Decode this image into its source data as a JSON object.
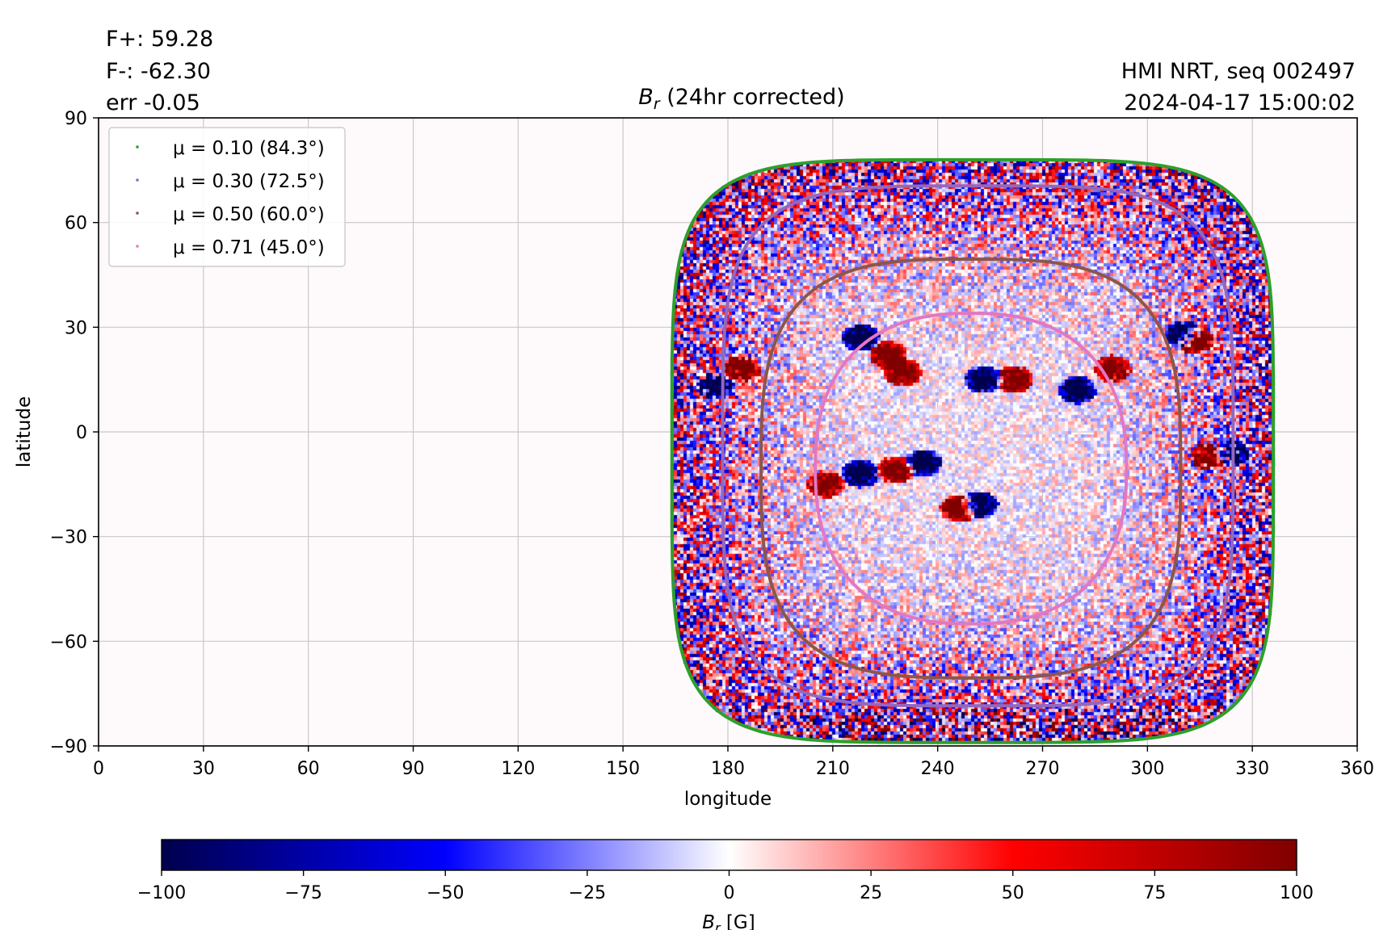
{
  "header": {
    "stats": [
      "F+: 59.28",
      "F-: -62.30",
      "err -0.05"
    ],
    "source": "HMI NRT, seq 002497",
    "timestamp": "2024-04-17 15:00:02"
  },
  "chart_data": {
    "type": "heatmap",
    "title": "B_r (24hr corrected)",
    "title_parts": {
      "symbol": "B",
      "subscript": "r",
      "rest": " (24hr corrected)"
    },
    "xlabel": "longitude",
    "ylabel": "latitude",
    "xlim": [
      0,
      360
    ],
    "ylim": [
      -90,
      90
    ],
    "xticks": [
      0,
      30,
      60,
      90,
      120,
      150,
      180,
      210,
      240,
      270,
      300,
      330,
      360
    ],
    "yticks": [
      90,
      60,
      30,
      0,
      -30,
      -60,
      -90
    ],
    "ytick_labels": [
      "90",
      "60",
      "30",
      "0",
      "−30",
      "−60",
      "−90"
    ],
    "grid": true,
    "map_extent": {
      "lon_min": 164,
      "lon_max": 336,
      "lat_min": -89,
      "lat_max": 78,
      "disk_center_lon": 250,
      "disk_center_lat": -10
    },
    "legend_position": "top-left",
    "contours": [
      {
        "label": "μ = 0.10 (84.3°)",
        "mu": 0.1,
        "angle_deg": 84.3,
        "color": "#2ca02c"
      },
      {
        "label": "μ = 0.30 (72.5°)",
        "mu": 0.3,
        "angle_deg": 72.5,
        "color": "#9467bd"
      },
      {
        "label": "μ = 0.50 (60.0°)",
        "mu": 0.5,
        "angle_deg": 60.0,
        "color": "#8c564b"
      },
      {
        "label": "μ = 0.71 (45.0°)",
        "mu": 0.71,
        "angle_deg": 45.0,
        "color": "#e377c2"
      }
    ],
    "active_regions": [
      {
        "lon": 218,
        "lat": 27,
        "polarity": "negative"
      },
      {
        "lon": 226,
        "lat": 22,
        "polarity": "positive"
      },
      {
        "lon": 230,
        "lat": 17,
        "polarity": "positive"
      },
      {
        "lon": 253,
        "lat": 15,
        "polarity": "negative"
      },
      {
        "lon": 262,
        "lat": 15,
        "polarity": "positive"
      },
      {
        "lon": 280,
        "lat": 12,
        "polarity": "negative"
      },
      {
        "lon": 290,
        "lat": 18,
        "polarity": "positive"
      },
      {
        "lon": 314,
        "lat": 26,
        "polarity": "positive"
      },
      {
        "lon": 310,
        "lat": 28,
        "polarity": "negative"
      },
      {
        "lon": 177,
        "lat": 13,
        "polarity": "negative"
      },
      {
        "lon": 184,
        "lat": 18,
        "polarity": "positive"
      },
      {
        "lon": 208,
        "lat": -15,
        "polarity": "positive"
      },
      {
        "lon": 218,
        "lat": -12,
        "polarity": "negative"
      },
      {
        "lon": 228,
        "lat": -11,
        "polarity": "positive"
      },
      {
        "lon": 236,
        "lat": -9,
        "polarity": "negative"
      },
      {
        "lon": 246,
        "lat": -22,
        "polarity": "positive"
      },
      {
        "lon": 252,
        "lat": -21,
        "polarity": "negative"
      },
      {
        "lon": 318,
        "lat": -7,
        "polarity": "positive"
      },
      {
        "lon": 324,
        "lat": -6,
        "polarity": "negative"
      }
    ],
    "colorbar": {
      "label_symbol": "B",
      "label_subscript": "r",
      "label_unit": " [G]",
      "min": -100,
      "max": 100,
      "ticks": [
        -100,
        -75,
        -50,
        -25,
        0,
        25,
        50,
        75,
        100
      ],
      "tick_labels": [
        "−100",
        "−75",
        "−50",
        "−25",
        "0",
        "25",
        "50",
        "75",
        "100"
      ],
      "colormap": "seismic"
    }
  }
}
